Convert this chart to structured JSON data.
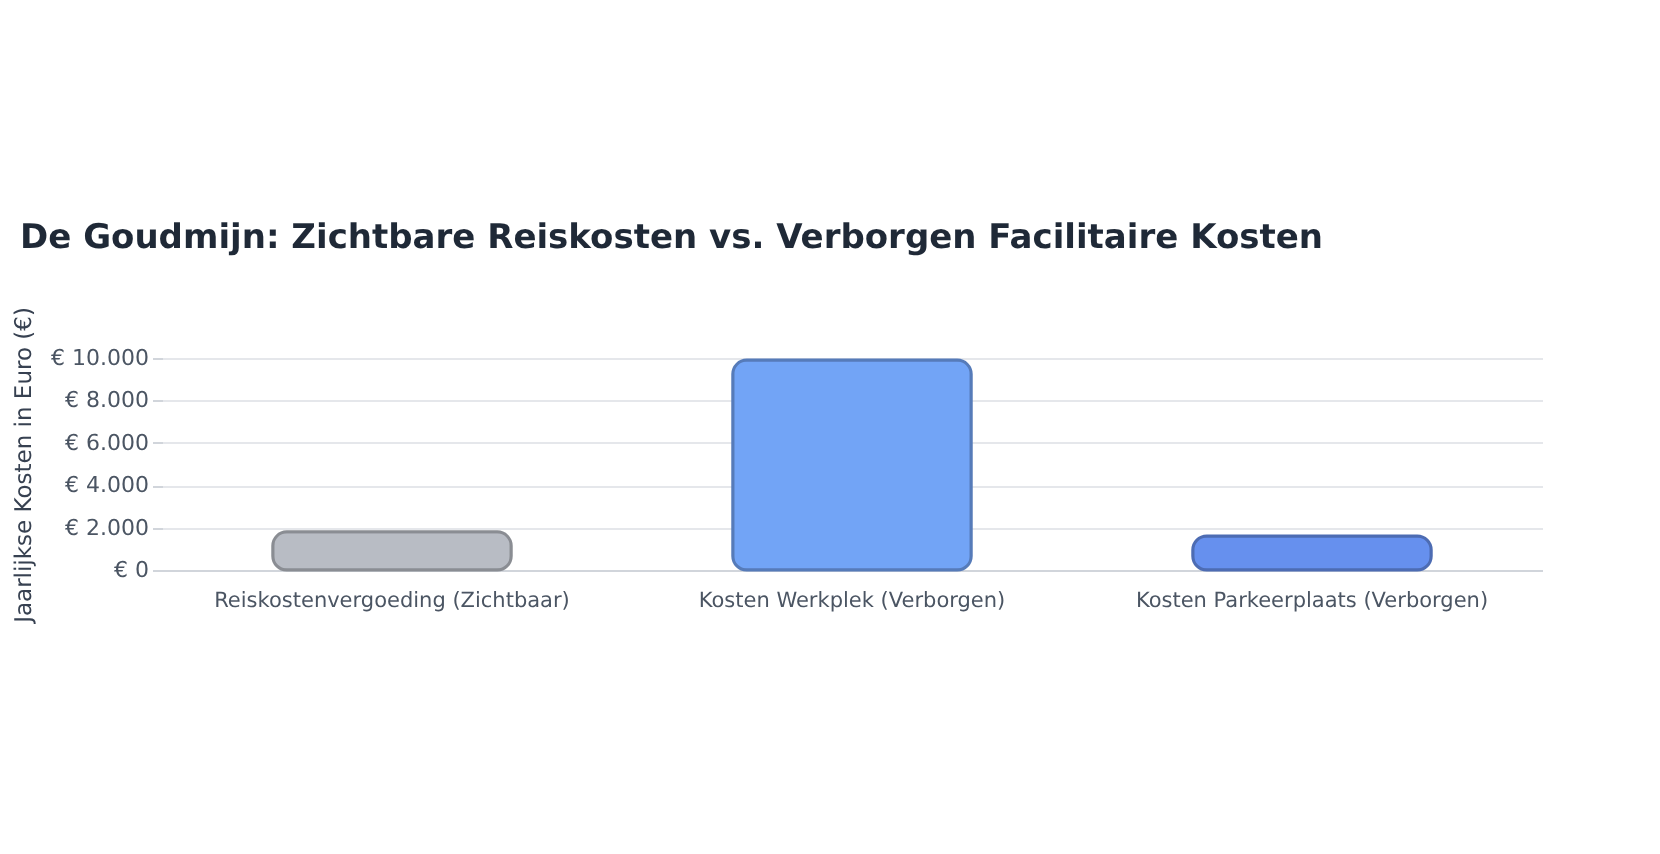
{
  "chart_data": {
    "type": "bar",
    "title": "De Goudmijn: Zichtbare Reiskosten vs. Verborgen Facilitaire Kosten",
    "ylabel": "Jaarlijkse Kosten in Euro (€)",
    "categories": [
      "Reiskostenvergoeding (Zichtbaar)",
      "Kosten Werkplek (Verborgen)",
      "Kosten Parkeerplaats (Verborgen)"
    ],
    "values": [
      1800,
      9900,
      1600
    ],
    "colors": [
      "#b8bcc4",
      "#72a4f6",
      "#6690ee"
    ],
    "ylim": [
      0,
      10000
    ],
    "yticks": [
      {
        "value": 0,
        "label": "€ 0"
      },
      {
        "value": 2000,
        "label": "€ 2.000"
      },
      {
        "value": 4000,
        "label": "€ 4.000"
      },
      {
        "value": 6000,
        "label": "€ 6.000"
      },
      {
        "value": 8000,
        "label": "€ 8.000"
      },
      {
        "value": 10000,
        "label": "€ 10.000"
      }
    ],
    "grid": "y",
    "legend": false
  }
}
